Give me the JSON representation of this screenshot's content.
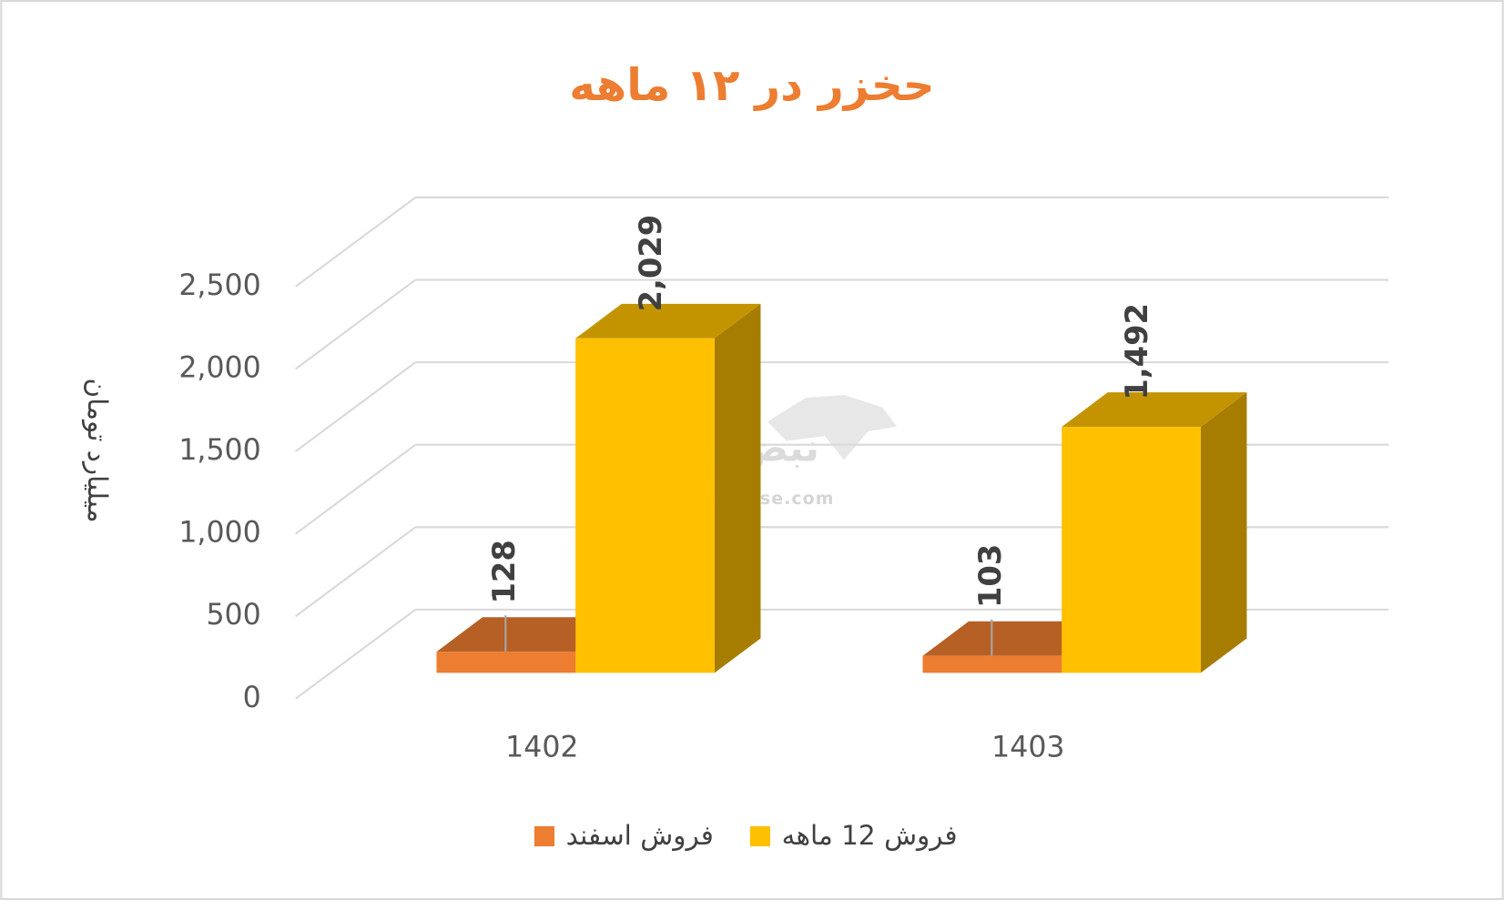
{
  "chart_data": {
    "type": "bar3d",
    "title": "حخزر در ۱۲ ماهه",
    "y_label": "میلیارد تومان",
    "categories": [
      "1402",
      "1403"
    ],
    "series": [
      {
        "name": "فروش اسفند",
        "color": "#ED7D31",
        "values": [
          128,
          103
        ]
      },
      {
        "name": "فروش 12 ماهه",
        "color": "#FFC000",
        "values": [
          2029,
          1492
        ],
        "value_labels": [
          "2,029",
          "1,492"
        ]
      }
    ],
    "ylim": [
      0,
      2500
    ],
    "yticks": [
      0,
      500,
      {
        "value": 1000,
        "label": "1,000"
      },
      {
        "value": 1500,
        "label": "1,500"
      },
      {
        "value": 2000,
        "label": "2,000"
      },
      {
        "value": 2500,
        "label": "2,500"
      }
    ],
    "grid": true,
    "legend": "bottom",
    "watermark": {
      "text": "نبض بورس",
      "url": "nabzebourse.com"
    }
  }
}
